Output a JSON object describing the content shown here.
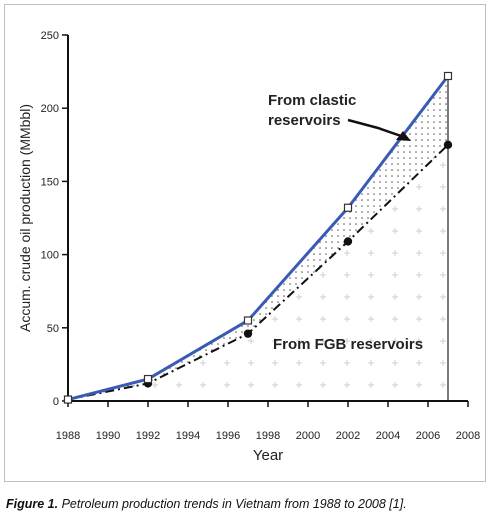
{
  "caption": {
    "figure_label": "Figure 1.",
    "text": " Petroleum production trends in Vietnam from 1988 to 2008 [1]."
  },
  "colors": {
    "total_line": "#3a5bb4",
    "fgb_line": "#111111",
    "axis": "#111111"
  },
  "chart_data": {
    "type": "line",
    "title": "",
    "xlabel": "Year",
    "ylabel": "Accum. crude oil production (MMbbl)",
    "xlim": [
      1988,
      2008
    ],
    "ylim": [
      0,
      250
    ],
    "xticks": [
      1988,
      1990,
      1992,
      1994,
      1996,
      1998,
      2000,
      2002,
      2004,
      2006,
      2008
    ],
    "yticks": [
      0,
      50,
      100,
      150,
      200,
      250
    ],
    "grid": false,
    "series": [
      {
        "style": "solid-blue-square-markers",
        "x": [
          1988,
          1992,
          1997,
          2002,
          2007
        ],
        "y": [
          1,
          15,
          55,
          132,
          222
        ]
      },
      {
        "style": "dash-dot-black-circle-markers",
        "x": [
          1988,
          1992,
          1997,
          2002,
          2007
        ],
        "y": [
          1,
          12,
          46,
          109,
          175
        ]
      }
    ],
    "annotations": [
      {
        "id": "clastic",
        "lines": [
          "From clastic",
          "reservoirs"
        ]
      },
      {
        "id": "fgb",
        "lines": [
          "From FGB reservoirs"
        ]
      }
    ]
  }
}
